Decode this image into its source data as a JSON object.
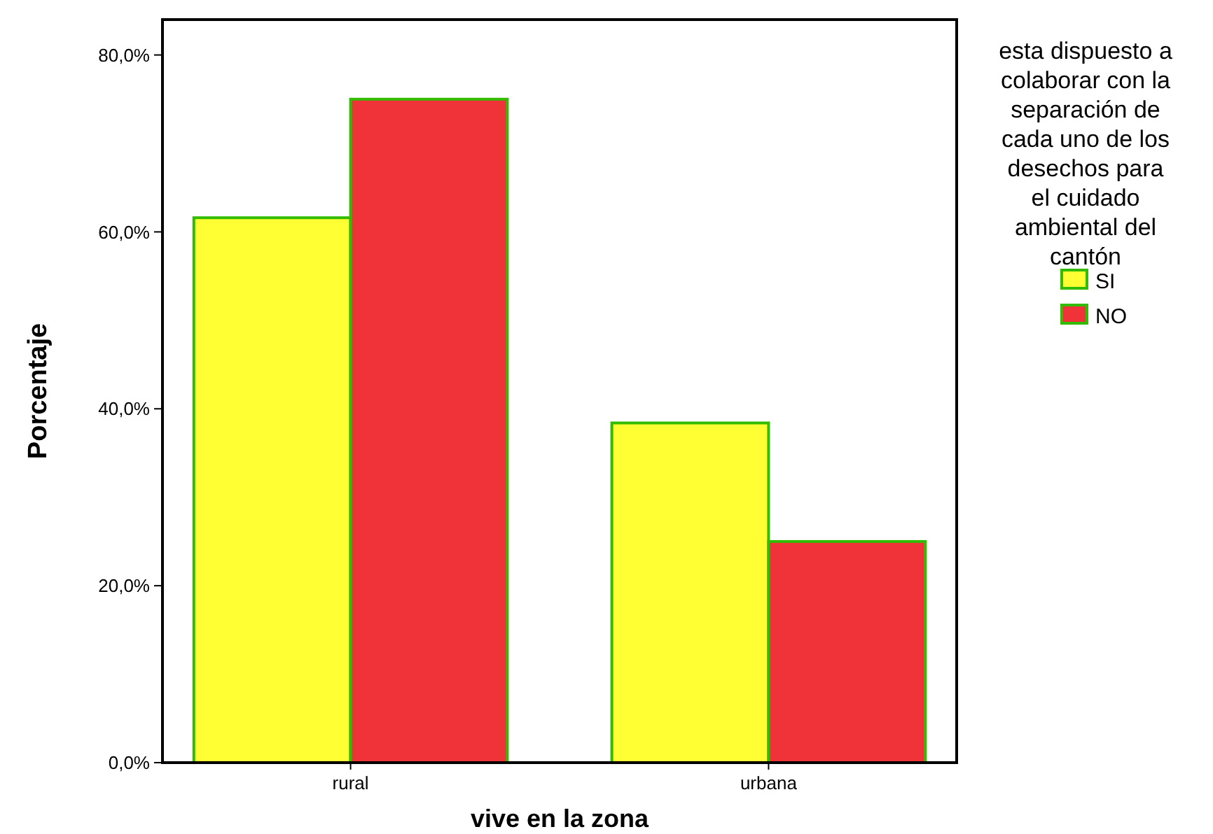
{
  "chart_data": {
    "type": "bar",
    "xlabel": "vive en la zona",
    "ylabel": "Porcentaje",
    "legend_title": "esta dispuesto a\ncolaborar con la\nseparación de\ncada uno de los\ndesechos para\nel cuidado\nambiental del\ncantón",
    "categories": [
      "rural",
      "urbana"
    ],
    "series": [
      {
        "name": "SI",
        "color": "#ffff33",
        "values": [
          61.6,
          38.4
        ]
      },
      {
        "name": "NO",
        "color": "#ef3339",
        "values": [
          75,
          25
        ]
      }
    ],
    "ylim": [
      0,
      84
    ],
    "yticks": [
      {
        "value": 0,
        "label": "0,0%"
      },
      {
        "value": 20,
        "label": "20,0%"
      },
      {
        "value": 40,
        "label": "40,0%"
      },
      {
        "value": 60,
        "label": "60,0%"
      },
      {
        "value": 80,
        "label": "80,0%"
      }
    ],
    "grid": false,
    "legend": "right"
  }
}
